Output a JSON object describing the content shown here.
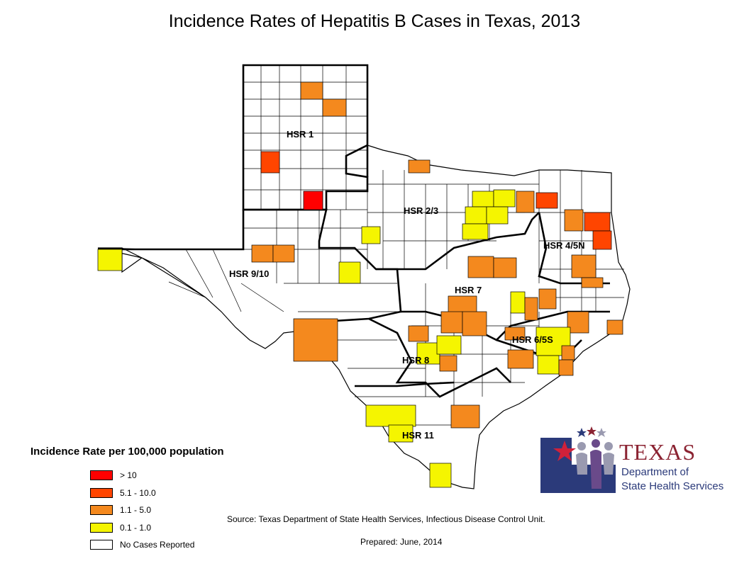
{
  "title": "Incidence Rates of Hepatitis B Cases in Texas, 2013",
  "regions": [
    {
      "id": "hsr1",
      "label": "HSR 1"
    },
    {
      "id": "hsr23",
      "label": "HSR 2/3"
    },
    {
      "id": "hsr45n",
      "label": "HSR 4/5N"
    },
    {
      "id": "hsr910",
      "label": "HSR 9/10"
    },
    {
      "id": "hsr7",
      "label": "HSR 7"
    },
    {
      "id": "hsr65s",
      "label": "HSR 6/5S"
    },
    {
      "id": "hsr8",
      "label": "HSR 8"
    },
    {
      "id": "hsr11",
      "label": "HSR 11"
    }
  ],
  "legend": {
    "title": "Incidence Rate per 100,000 population",
    "items": [
      {
        "label": "> 10",
        "color": "#ff0000"
      },
      {
        "label": "5.1 - 10.0",
        "color": "#ff4500"
      },
      {
        "label": "1.1 - 5.0",
        "color": "#f4891e"
      },
      {
        "label": "0.1 - 1.0",
        "color": "#f5f500"
      },
      {
        "label": "No Cases Reported",
        "color": "#ffffff"
      }
    ]
  },
  "source": "Source: Texas Department of State Health Services, Infectious Disease Control Unit.",
  "prepared": "Prepared: June, 2014",
  "logo": {
    "name": "TEXAS",
    "line1": "Department of",
    "line2": "State Health Services"
  }
}
